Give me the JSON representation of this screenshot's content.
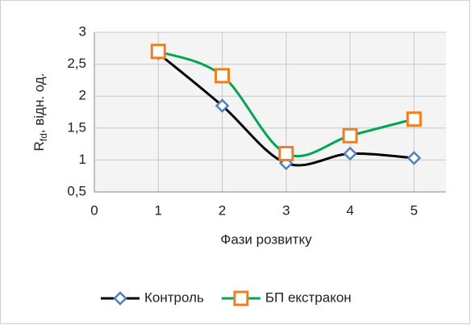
{
  "chart_data": {
    "type": "line",
    "x_label": "Фази розвитку",
    "y_label": {
      "main": "R",
      "sub": "fd",
      "rest": ", відн. од."
    },
    "x": [
      1,
      2,
      3,
      4,
      5
    ],
    "series": [
      {
        "name": "Контроль",
        "color": "#000000",
        "marker": "diamond",
        "marker_color": "#4f81bd",
        "values": [
          2.67,
          1.85,
          0.95,
          1.1,
          1.03
        ]
      },
      {
        "name": "БП екстракон",
        "color": "#00a651",
        "marker": "square",
        "marker_color": "#f07f1f",
        "values": [
          2.7,
          2.32,
          1.1,
          1.38,
          1.64
        ]
      }
    ],
    "xlim": [
      0,
      5.5
    ],
    "xticks": [
      0,
      1,
      2,
      3,
      4,
      5
    ],
    "ylim": [
      0.5,
      3
    ],
    "yticks": [
      {
        "value": 0.5,
        "label": "0,5"
      },
      1,
      {
        "value": 1.5,
        "label": "1,5"
      },
      2,
      {
        "value": 2.5,
        "label": "2,5"
      },
      3
    ],
    "grid": true,
    "smooth": true,
    "legend": "bottom"
  }
}
